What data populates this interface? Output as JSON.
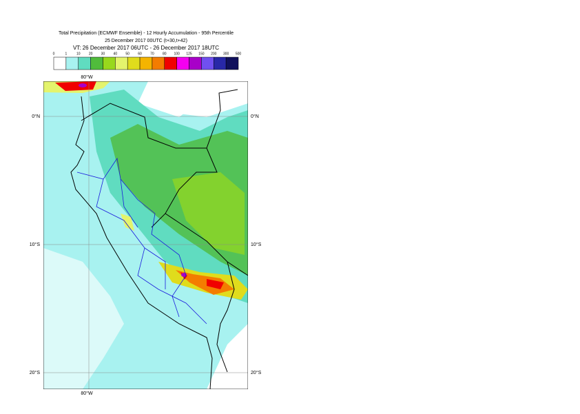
{
  "header": {
    "title": "Total Precipitation (ECMWF Ensemble) - 12 Hourly Accumulation - 95th Percentile",
    "subtitle": "25 December 2017 00UTC (t+30,t+42)",
    "valid_time": "VT: 26 December 2017 06UTC - 26 December 2017 18UTC"
  },
  "legend": {
    "labels": [
      0,
      1,
      10,
      20,
      30,
      40,
      50,
      60,
      70,
      80,
      100,
      125,
      150,
      200,
      300,
      500
    ],
    "colors": [
      "#ffffff",
      "#a8f2f0",
      "#60dcc0",
      "#50bc3c",
      "#98d81c",
      "#e4f46c",
      "#e0dc1c",
      "#f4b400",
      "#f47c00",
      "#f00000",
      "#f400f0",
      "#a800c8",
      "#7050f0",
      "#2828a8",
      "#10105c"
    ]
  },
  "axes": {
    "lon_label": "80°W",
    "lat_labels": [
      "0°N",
      "10°S",
      "20°S"
    ]
  }
}
